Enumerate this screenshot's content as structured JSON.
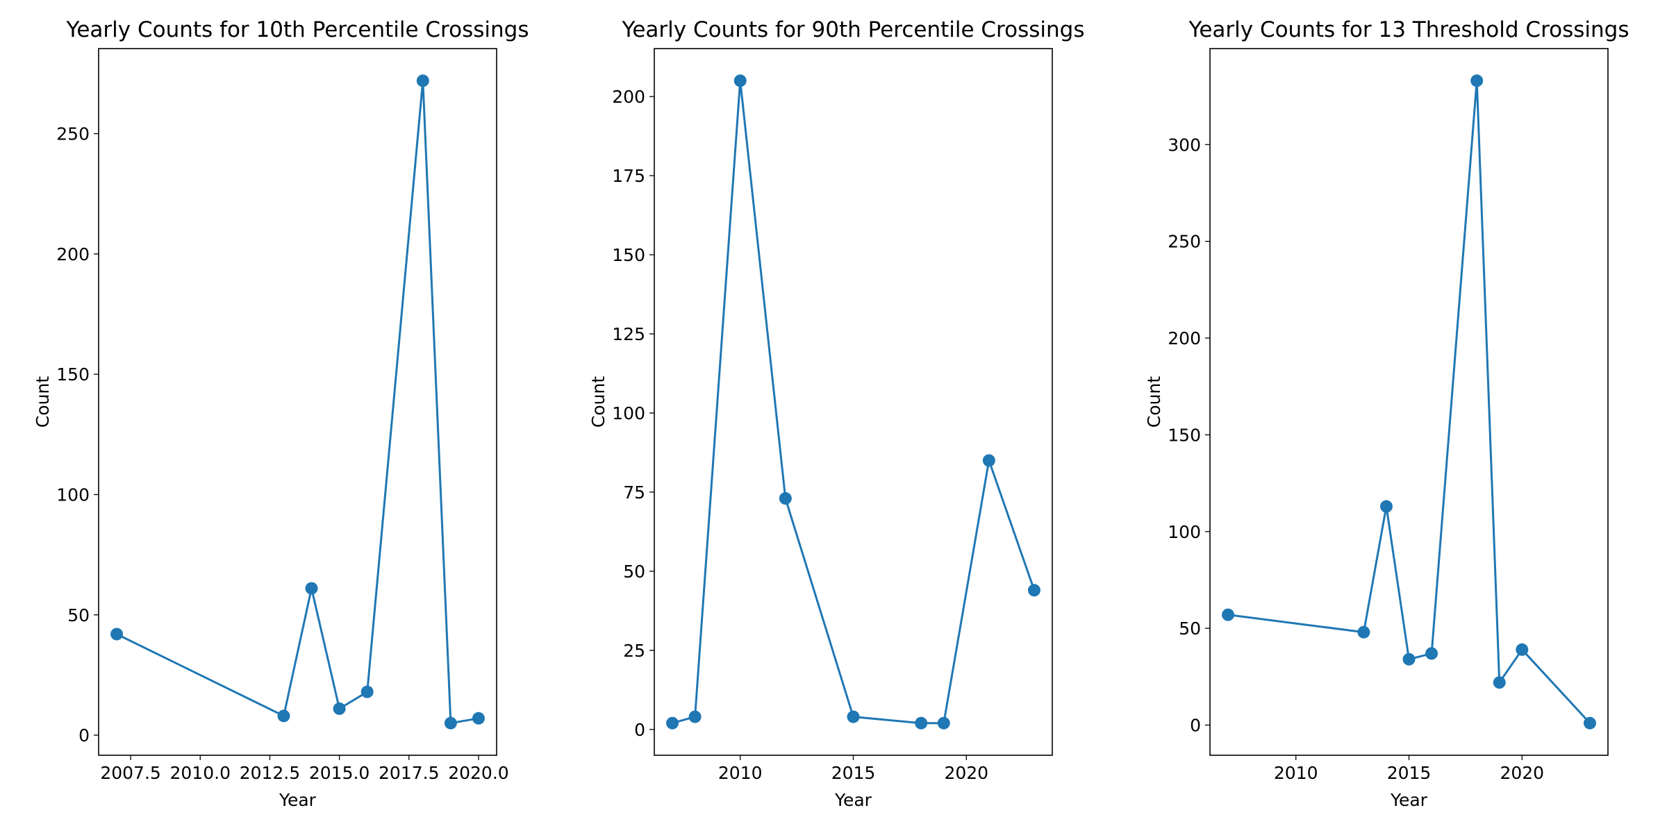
{
  "chart_data": [
    {
      "type": "line",
      "title": "Yearly Counts for 10th Percentile Crossings",
      "xlabel": "Year",
      "ylabel": "Count",
      "xlim": [
        2006.35,
        2020.65
      ],
      "ylim": [
        -8.35,
        285.35
      ],
      "xticks": [
        2007.5,
        2010.0,
        2012.5,
        2015.0,
        2017.5,
        2020.0
      ],
      "xtick_labels": [
        "2007.5",
        "2010.0",
        "2012.5",
        "2015.0",
        "2017.5",
        "2020.0"
      ],
      "yticks": [
        0,
        50,
        100,
        150,
        200,
        250
      ],
      "ytick_labels": [
        "0",
        "50",
        "100",
        "150",
        "200",
        "250"
      ],
      "grid": false,
      "series": [
        {
          "color": "#1f77b4",
          "x": [
            2007,
            2013,
            2014,
            2015,
            2016,
            2018,
            2019,
            2020
          ],
          "y": [
            42,
            8,
            61,
            11,
            18,
            272,
            5,
            7
          ]
        }
      ]
    },
    {
      "type": "line",
      "title": "Yearly Counts for 90th Percentile Crossings",
      "xlabel": "Year",
      "ylabel": "Count",
      "xlim": [
        2006.2,
        2023.8
      ],
      "ylim": [
        -8.15,
        215.15
      ],
      "xticks": [
        2010,
        2015,
        2020
      ],
      "xtick_labels": [
        "2010",
        "2015",
        "2020"
      ],
      "yticks": [
        0,
        25,
        50,
        75,
        100,
        125,
        150,
        175,
        200
      ],
      "ytick_labels": [
        "0",
        "25",
        "50",
        "75",
        "100",
        "125",
        "150",
        "175",
        "200"
      ],
      "grid": false,
      "series": [
        {
          "color": "#1f77b4",
          "x": [
            2007,
            2008,
            2010,
            2012,
            2015,
            2018,
            2019,
            2021,
            2023
          ],
          "y": [
            2,
            4,
            205,
            73,
            4,
            2,
            2,
            85,
            44
          ]
        }
      ]
    },
    {
      "type": "line",
      "title": "Yearly Counts for 13 Threshold Crossings",
      "xlabel": "Year",
      "ylabel": "Count",
      "xlim": [
        2006.2,
        2023.8
      ],
      "ylim": [
        -15.6,
        349.6
      ],
      "xticks": [
        2010,
        2015,
        2020
      ],
      "xtick_labels": [
        "2010",
        "2015",
        "2020"
      ],
      "yticks": [
        0,
        50,
        100,
        150,
        200,
        250,
        300
      ],
      "ytick_labels": [
        "0",
        "50",
        "100",
        "150",
        "200",
        "250",
        "300"
      ],
      "grid": false,
      "series": [
        {
          "color": "#1f77b4",
          "x": [
            2007,
            2013,
            2014,
            2015,
            2016,
            2018,
            2019,
            2020,
            2023
          ],
          "y": [
            57,
            48,
            113,
            34,
            37,
            333,
            22,
            39,
            1
          ]
        }
      ]
    }
  ]
}
